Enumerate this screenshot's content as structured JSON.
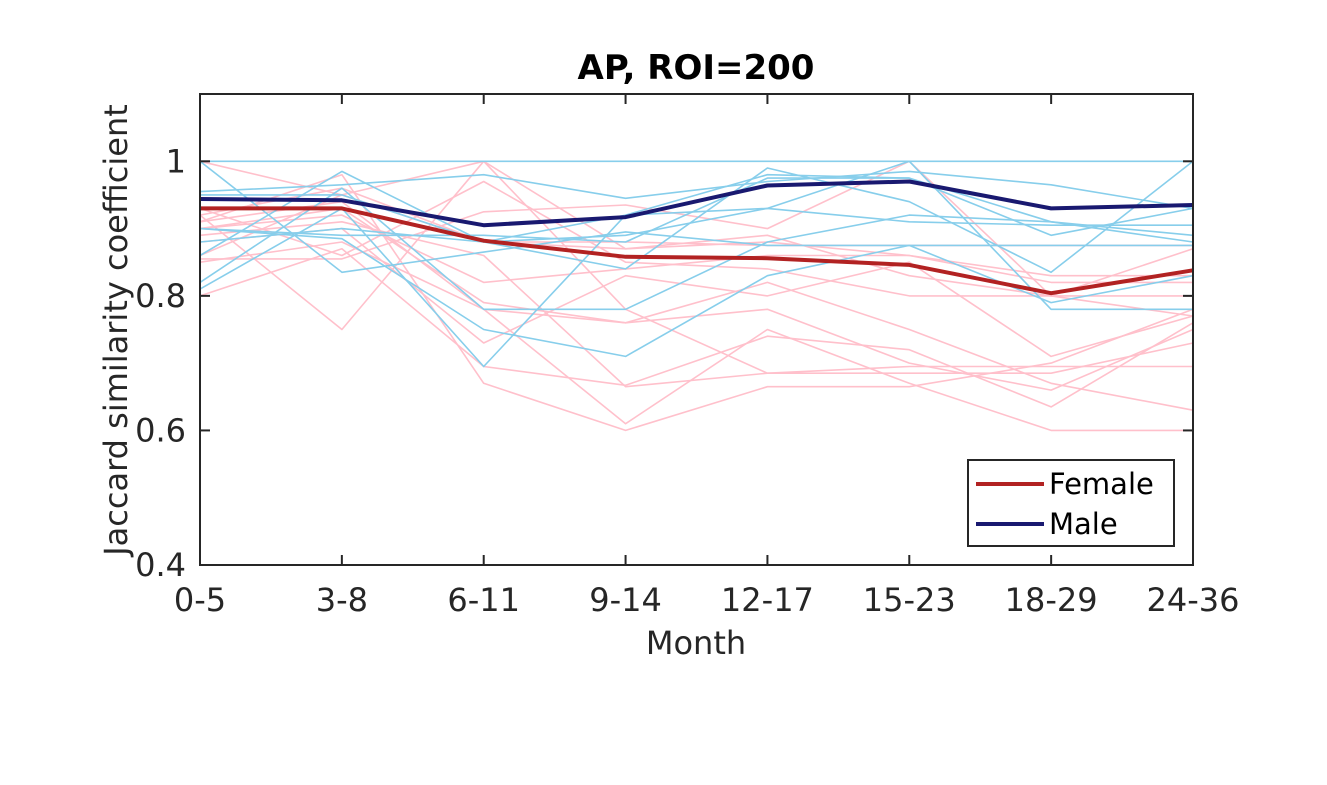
{
  "chart_data": {
    "type": "line",
    "title": "AP, ROI=200",
    "xlabel": "Month",
    "ylabel": "Jaccard similarity coefficient",
    "categories": [
      "0-5",
      "3-8",
      "6-11",
      "9-14",
      "12-17",
      "15-23",
      "18-29",
      "24-36"
    ],
    "ylim": [
      0.4,
      1.1
    ],
    "yticks": [
      0.4,
      0.6,
      0.8,
      1
    ],
    "ytick_labels": [
      "0.4",
      "0.6",
      "0.8",
      "1"
    ],
    "grid": false,
    "legend_position": "bottom-right",
    "series": [
      {
        "name": "Female",
        "color": "#b22222",
        "role": "mean",
        "values": [
          0.93,
          0.93,
          0.882,
          0.858,
          0.856,
          0.846,
          0.804,
          0.838
        ]
      },
      {
        "name": "Male",
        "color": "#191970",
        "role": "mean",
        "values": [
          0.944,
          0.942,
          0.905,
          0.917,
          0.964,
          0.97,
          0.93,
          0.935
        ]
      }
    ],
    "individual_female": {
      "color": "#ffc0cb",
      "lines": [
        [
          1.0,
          0.95,
          0.88,
          0.87,
          0.88,
          0.86,
          0.83,
          0.83
        ],
        [
          0.92,
          0.75,
          1.0,
          0.87,
          0.89,
          0.83,
          0.8,
          0.77
        ],
        [
          0.9,
          0.93,
          0.79,
          0.76,
          0.78,
          0.7,
          0.66,
          0.75
        ],
        [
          0.85,
          0.88,
          0.78,
          0.61,
          0.75,
          0.67,
          0.6,
          0.6
        ],
        [
          0.8,
          0.87,
          0.695,
          0.667,
          0.74,
          0.72,
          0.635,
          0.76
        ],
        [
          0.91,
          0.98,
          0.67,
          0.6,
          0.665,
          0.665,
          0.7,
          0.78
        ],
        [
          0.88,
          0.9,
          0.73,
          0.83,
          0.8,
          0.85,
          0.71,
          0.77
        ],
        [
          0.93,
          0.86,
          0.97,
          0.85,
          0.84,
          0.8,
          0.8,
          0.8
        ],
        [
          0.9,
          0.92,
          0.82,
          0.84,
          0.86,
          0.86,
          0.82,
          0.82
        ],
        [
          0.855,
          0.855,
          0.925,
          0.935,
          0.9,
          1.0,
          0.8,
          0.87
        ],
        [
          0.86,
          0.95,
          1.0,
          0.78,
          0.685,
          0.685,
          0.685,
          0.73
        ],
        [
          0.89,
          0.91,
          0.86,
          0.665,
          0.685,
          0.695,
          0.695,
          0.695
        ],
        [
          0.91,
          0.94,
          0.78,
          0.76,
          0.82,
          0.75,
          0.67,
          0.63
        ],
        [
          0.92,
          0.96,
          0.88,
          0.88,
          0.875,
          0.875,
          0.875,
          0.875
        ]
      ]
    },
    "individual_male": {
      "color": "#87ceeb",
      "lines": [
        [
          1.0,
          1.0,
          1.0,
          1.0,
          1.0,
          1.0,
          1.0,
          1.0
        ],
        [
          0.81,
          0.93,
          0.695,
          0.92,
          0.98,
          0.975,
          0.91,
          0.88
        ],
        [
          0.955,
          0.965,
          0.98,
          0.945,
          0.97,
          0.985,
          0.965,
          0.93
        ],
        [
          0.86,
          0.985,
          0.88,
          0.84,
          0.99,
          0.94,
          0.835,
          1.0
        ],
        [
          0.9,
          0.885,
          0.75,
          0.71,
          0.83,
          0.875,
          0.79,
          0.83
        ],
        [
          0.82,
          0.96,
          0.78,
          0.78,
          0.88,
          0.92,
          0.91,
          0.89
        ],
        [
          1.0,
          0.835,
          0.865,
          0.895,
          0.875,
          0.875,
          0.875,
          0.875
        ],
        [
          0.95,
          0.95,
          0.88,
          0.89,
          0.93,
          1.0,
          0.78,
          0.78
        ],
        [
          0.9,
          0.89,
          0.89,
          0.88,
          0.975,
          0.975,
          0.89,
          0.93
        ],
        [
          0.88,
          0.9,
          0.88,
          0.92,
          0.93,
          0.91,
          0.905,
          0.905
        ]
      ]
    }
  }
}
